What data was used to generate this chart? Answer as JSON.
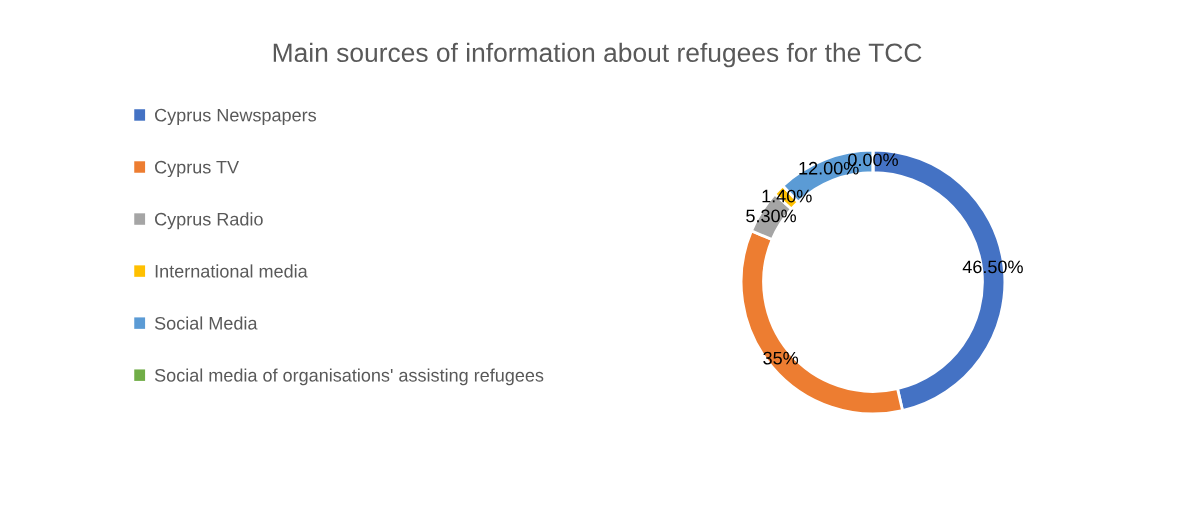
{
  "chart_data": {
    "type": "donut",
    "title": "Main sources of information about refugees for the TCC",
    "categories": [
      "Cyprus Newspapers",
      "Cyprus TV",
      "Cyprus Radio",
      "International media",
      "Social Media",
      "Social media of organisations' assisting refugees"
    ],
    "values": [
      46.5,
      35,
      5.3,
      1.4,
      12.0,
      0.0
    ],
    "value_labels": [
      "46.50%",
      "35%",
      "5.30%",
      "1.40%",
      "12.00%",
      "0.00%"
    ],
    "colors": [
      "#4472c4",
      "#ed7d31",
      "#a5a5a5",
      "#ffc000",
      "#5b9bd5",
      "#70ad47"
    ],
    "legend": "left"
  }
}
